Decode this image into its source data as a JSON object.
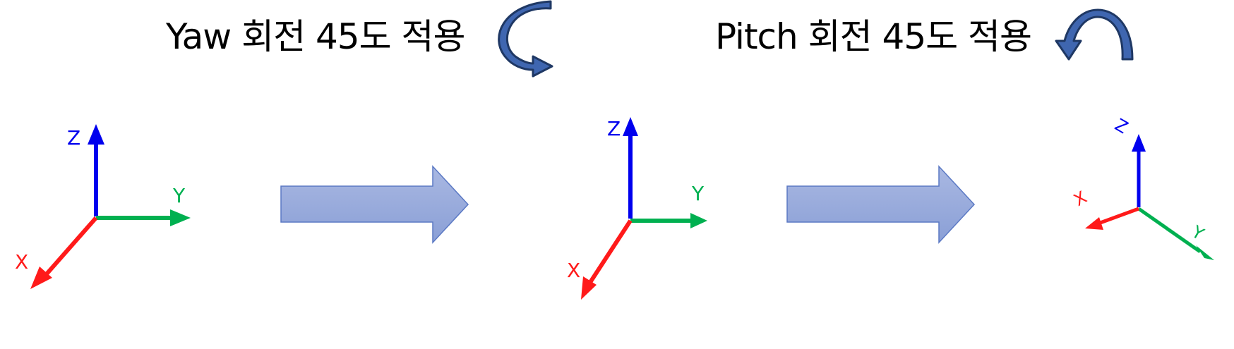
{
  "captions": {
    "yaw": "Yaw 회전 45도 적용",
    "pitch": "Pitch 회전 45도 적용"
  },
  "icons": {
    "yaw": "curved-rotate-arrow-icon",
    "pitch": "curved-rotate-arrow-icon"
  },
  "axes": {
    "x": "X",
    "y": "Y",
    "z": "Z"
  },
  "colors": {
    "x_axis": "#ff1a1a",
    "y_axis": "#00b050",
    "z_axis": "#0000ee",
    "block_arrow_fill": "#93a6d9",
    "block_arrow_stroke": "#5b79c4",
    "curved_arrow_fill": "#3f66b0",
    "curved_arrow_stroke": "#1f3864"
  }
}
